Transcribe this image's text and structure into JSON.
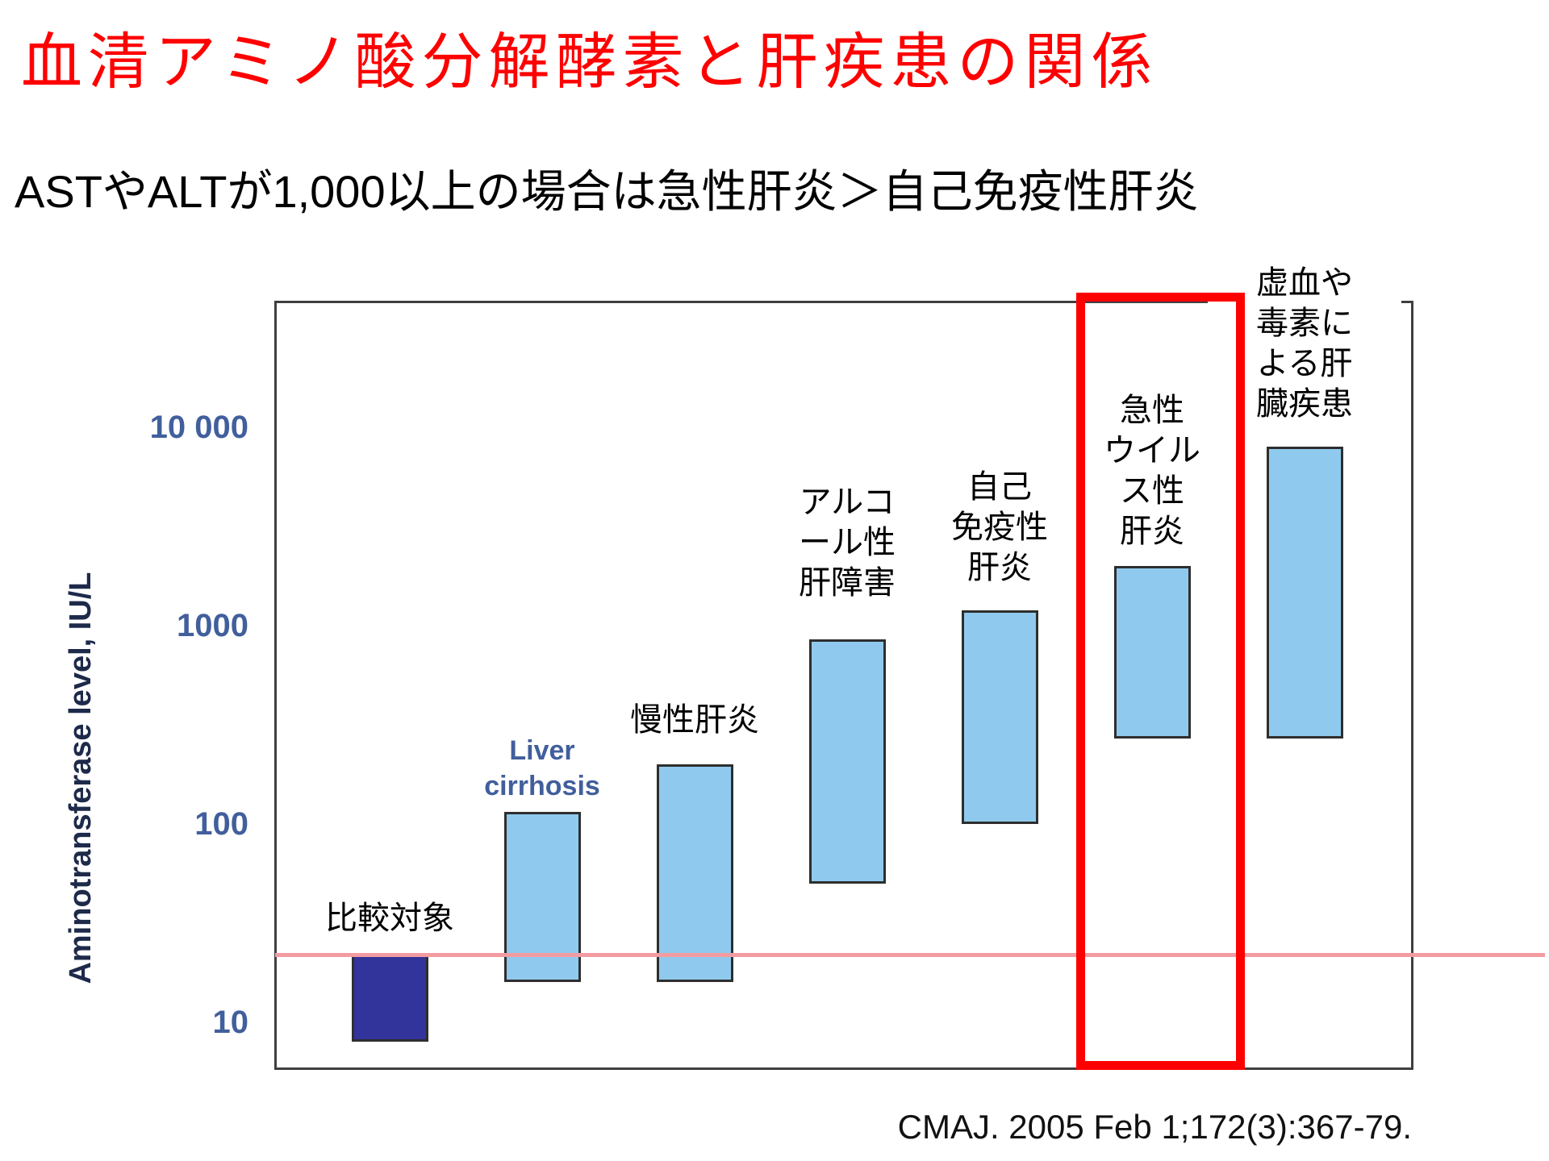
{
  "slide": {
    "title": "血清アミノ酸分解酵素と肝疾患の関係",
    "title_color": "#FF0000",
    "subtitle": "ASTやALTが1,000以上の場合は急性肝炎＞自己免疫性肝炎",
    "citation": "CMAJ. 2005 Feb 1;172(3):367-79."
  },
  "chart_data": {
    "type": "bar",
    "subtype": "floating-range-bars",
    "yscale": "log",
    "ylabel": "Aminotransferase level, IU/L",
    "ylim": [
      6,
      45000
    ],
    "grid": false,
    "yticks": [
      {
        "label": "10 000",
        "value": 10000
      },
      {
        "label": "1000",
        "value": 1000
      },
      {
        "label": "100",
        "value": 100
      },
      {
        "label": "10",
        "value": 10
      }
    ],
    "tick_color": "#415F9C",
    "axis_color": "#3F3F3F",
    "bar_border_color": "#2E2E2E",
    "threshold_line": {
      "value": 22,
      "color": "#F29CA2",
      "note": "upper-limit-of-normal"
    },
    "categories": [
      "比較対象",
      "Liver cirrhosis",
      "慢性肝炎",
      "アルコール性肝障害",
      "自己免疫性肝炎",
      "急性ウイルス性肝炎",
      "虚血や毒素による肝臓疾患"
    ],
    "series": [
      {
        "name": "比較対象",
        "label_lines": [
          "比較対象"
        ],
        "low": 8,
        "high": 22,
        "fill": "#32339B",
        "label_color": "#000000"
      },
      {
        "name": "Liver cirrhosis",
        "label_lines": [
          "Liver",
          "cirrhosis"
        ],
        "low": 16,
        "high": 115,
        "fill": "#8FCAEE",
        "label_color": "#415F9C",
        "label_lang": "en"
      },
      {
        "name": "慢性肝炎",
        "label_lines": [
          "慢性肝炎"
        ],
        "low": 16,
        "high": 200,
        "fill": "#8FCAEE",
        "label_color": "#000000"
      },
      {
        "name": "アルコール性肝障害",
        "label_lines": [
          "アルコ",
          "ール性",
          "肝障害"
        ],
        "low": 50,
        "high": 850,
        "fill": "#8FCAEE",
        "label_color": "#000000"
      },
      {
        "name": "自己免疫性肝炎",
        "label_lines": [
          "自己",
          "免疫性",
          "肝炎"
        ],
        "low": 100,
        "high": 1200,
        "fill": "#8FCAEE",
        "label_color": "#000000"
      },
      {
        "name": "急性ウイルス性肝炎",
        "label_lines": [
          "急性",
          "ウイル",
          "ス性",
          "肝炎"
        ],
        "low": 270,
        "high": 2000,
        "fill": "#8FCAEE",
        "label_color": "#000000",
        "highlighted": true
      },
      {
        "name": "虚血や毒素による肝臓疾患",
        "label_lines": [
          "虚血や",
          "毒素に",
          "よる肝",
          "臓疾患"
        ],
        "low": 270,
        "high": 8000,
        "fill": "#8FCAEE",
        "label_color": "#000000",
        "masks_border": true
      }
    ],
    "highlight_box": {
      "color": "#FF0000",
      "series_index": 5
    }
  }
}
